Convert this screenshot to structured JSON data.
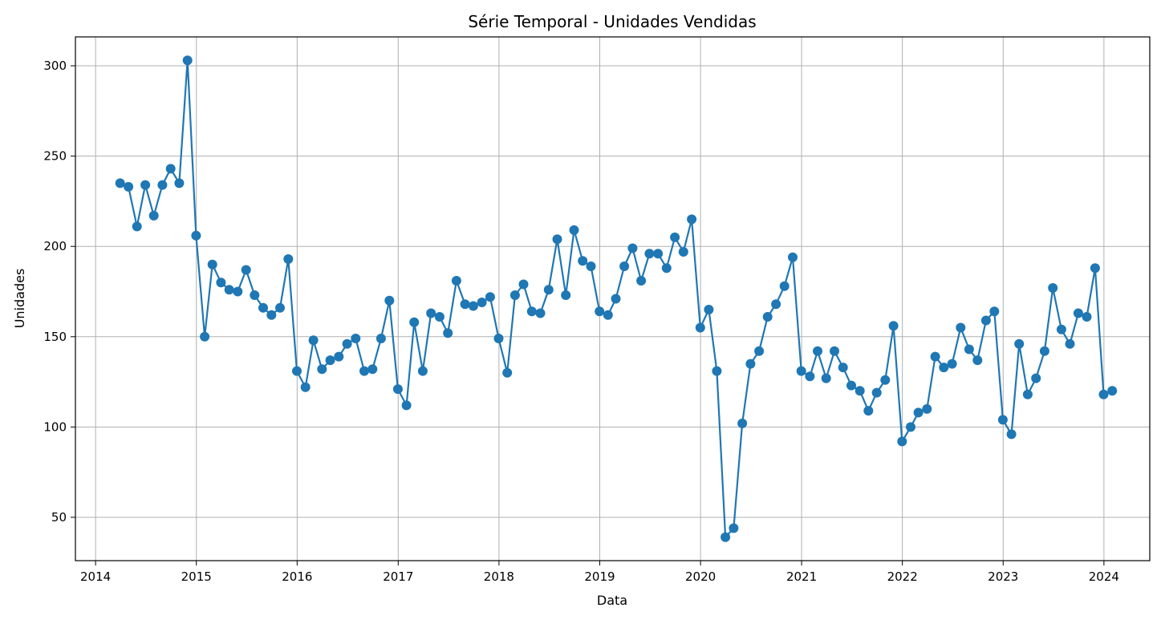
{
  "chart_data": {
    "type": "line",
    "title": "Série Temporal - Unidades Vendidas",
    "xlabel": "Data",
    "ylabel": "Unidades",
    "xlim": [
      "2013-10-20",
      "2024-06-15"
    ],
    "ylim": [
      26,
      316
    ],
    "x_ticks": [
      "2014",
      "2015",
      "2016",
      "2017",
      "2018",
      "2019",
      "2020",
      "2021",
      "2022",
      "2023",
      "2024"
    ],
    "y_ticks": [
      50,
      100,
      150,
      200,
      250,
      300
    ],
    "grid": true,
    "series_color": "#1f77b4",
    "marker": "circle",
    "series": [
      {
        "x": [
          "2014-03-31",
          "2014-04-30",
          "2014-05-31",
          "2014-06-30",
          "2014-07-31",
          "2014-08-31",
          "2014-09-30",
          "2014-10-31",
          "2014-11-30",
          "2014-12-31",
          "2015-01-31",
          "2015-02-28",
          "2015-03-31",
          "2015-04-30",
          "2015-05-31",
          "2015-06-30",
          "2015-07-31",
          "2015-08-31",
          "2015-09-30",
          "2015-10-31",
          "2015-11-30",
          "2015-12-31",
          "2016-01-31",
          "2016-02-29",
          "2016-03-31",
          "2016-04-30",
          "2016-05-31",
          "2016-06-30",
          "2016-07-31",
          "2016-08-31",
          "2016-09-30",
          "2016-10-31",
          "2016-11-30",
          "2016-12-31",
          "2017-01-31",
          "2017-02-28",
          "2017-03-31",
          "2017-04-30",
          "2017-05-31",
          "2017-06-30",
          "2017-07-31",
          "2017-08-31",
          "2017-09-30",
          "2017-10-31",
          "2017-11-30",
          "2017-12-31",
          "2018-01-31",
          "2018-02-28",
          "2018-03-31",
          "2018-04-30",
          "2018-05-31",
          "2018-06-30",
          "2018-07-31",
          "2018-08-31",
          "2018-09-30",
          "2018-10-31",
          "2018-11-30",
          "2018-12-31",
          "2019-01-31",
          "2019-02-28",
          "2019-03-31",
          "2019-04-30",
          "2019-05-31",
          "2019-06-30",
          "2019-07-31",
          "2019-08-31",
          "2019-09-30",
          "2019-10-31",
          "2019-11-30",
          "2019-12-31",
          "2020-01-31",
          "2020-02-29",
          "2020-03-31",
          "2020-04-30",
          "2020-05-31",
          "2020-06-30",
          "2020-07-31",
          "2020-08-31",
          "2020-09-30",
          "2020-10-31",
          "2020-11-30",
          "2020-12-31",
          "2021-01-31",
          "2021-02-28",
          "2021-03-31",
          "2021-04-30",
          "2021-05-31",
          "2021-06-30",
          "2021-07-31",
          "2021-08-31",
          "2021-09-30",
          "2021-10-31",
          "2021-11-30",
          "2021-12-31",
          "2022-01-31",
          "2022-02-28",
          "2022-03-31",
          "2022-04-30",
          "2022-05-31",
          "2022-06-30",
          "2022-07-31",
          "2022-08-31",
          "2022-09-30",
          "2022-10-31",
          "2022-11-30",
          "2022-12-31",
          "2023-01-31",
          "2023-02-28",
          "2023-03-31",
          "2023-04-30",
          "2023-05-31",
          "2023-06-30",
          "2023-07-31",
          "2023-08-31",
          "2023-09-30",
          "2023-10-31",
          "2023-11-30",
          "2023-12-31",
          "2024-01-31"
        ],
        "y": [
          235,
          233,
          211,
          234,
          217,
          234,
          243,
          235,
          303,
          206,
          150,
          190,
          180,
          176,
          175,
          187,
          173,
          166,
          162,
          166,
          193,
          131,
          122,
          148,
          132,
          137,
          139,
          146,
          149,
          131,
          132,
          149,
          170,
          121,
          112,
          158,
          131,
          163,
          161,
          152,
          181,
          168,
          167,
          169,
          172,
          149,
          130,
          173,
          179,
          164,
          163,
          176,
          204,
          173,
          209,
          192,
          189,
          164,
          162,
          171,
          189,
          199,
          181,
          196,
          196,
          188,
          205,
          197,
          215,
          155,
          165,
          131,
          39,
          44,
          102,
          135,
          142,
          161,
          168,
          178,
          194,
          131,
          128,
          142,
          127,
          142,
          133,
          123,
          120,
          109,
          119,
          126,
          156,
          92,
          100,
          108,
          110,
          139,
          133,
          135,
          155,
          143,
          137,
          159,
          164,
          104,
          96,
          146,
          118,
          127,
          142,
          177,
          154,
          146,
          163,
          161,
          188,
          118,
          120
        ]
      }
    ]
  }
}
